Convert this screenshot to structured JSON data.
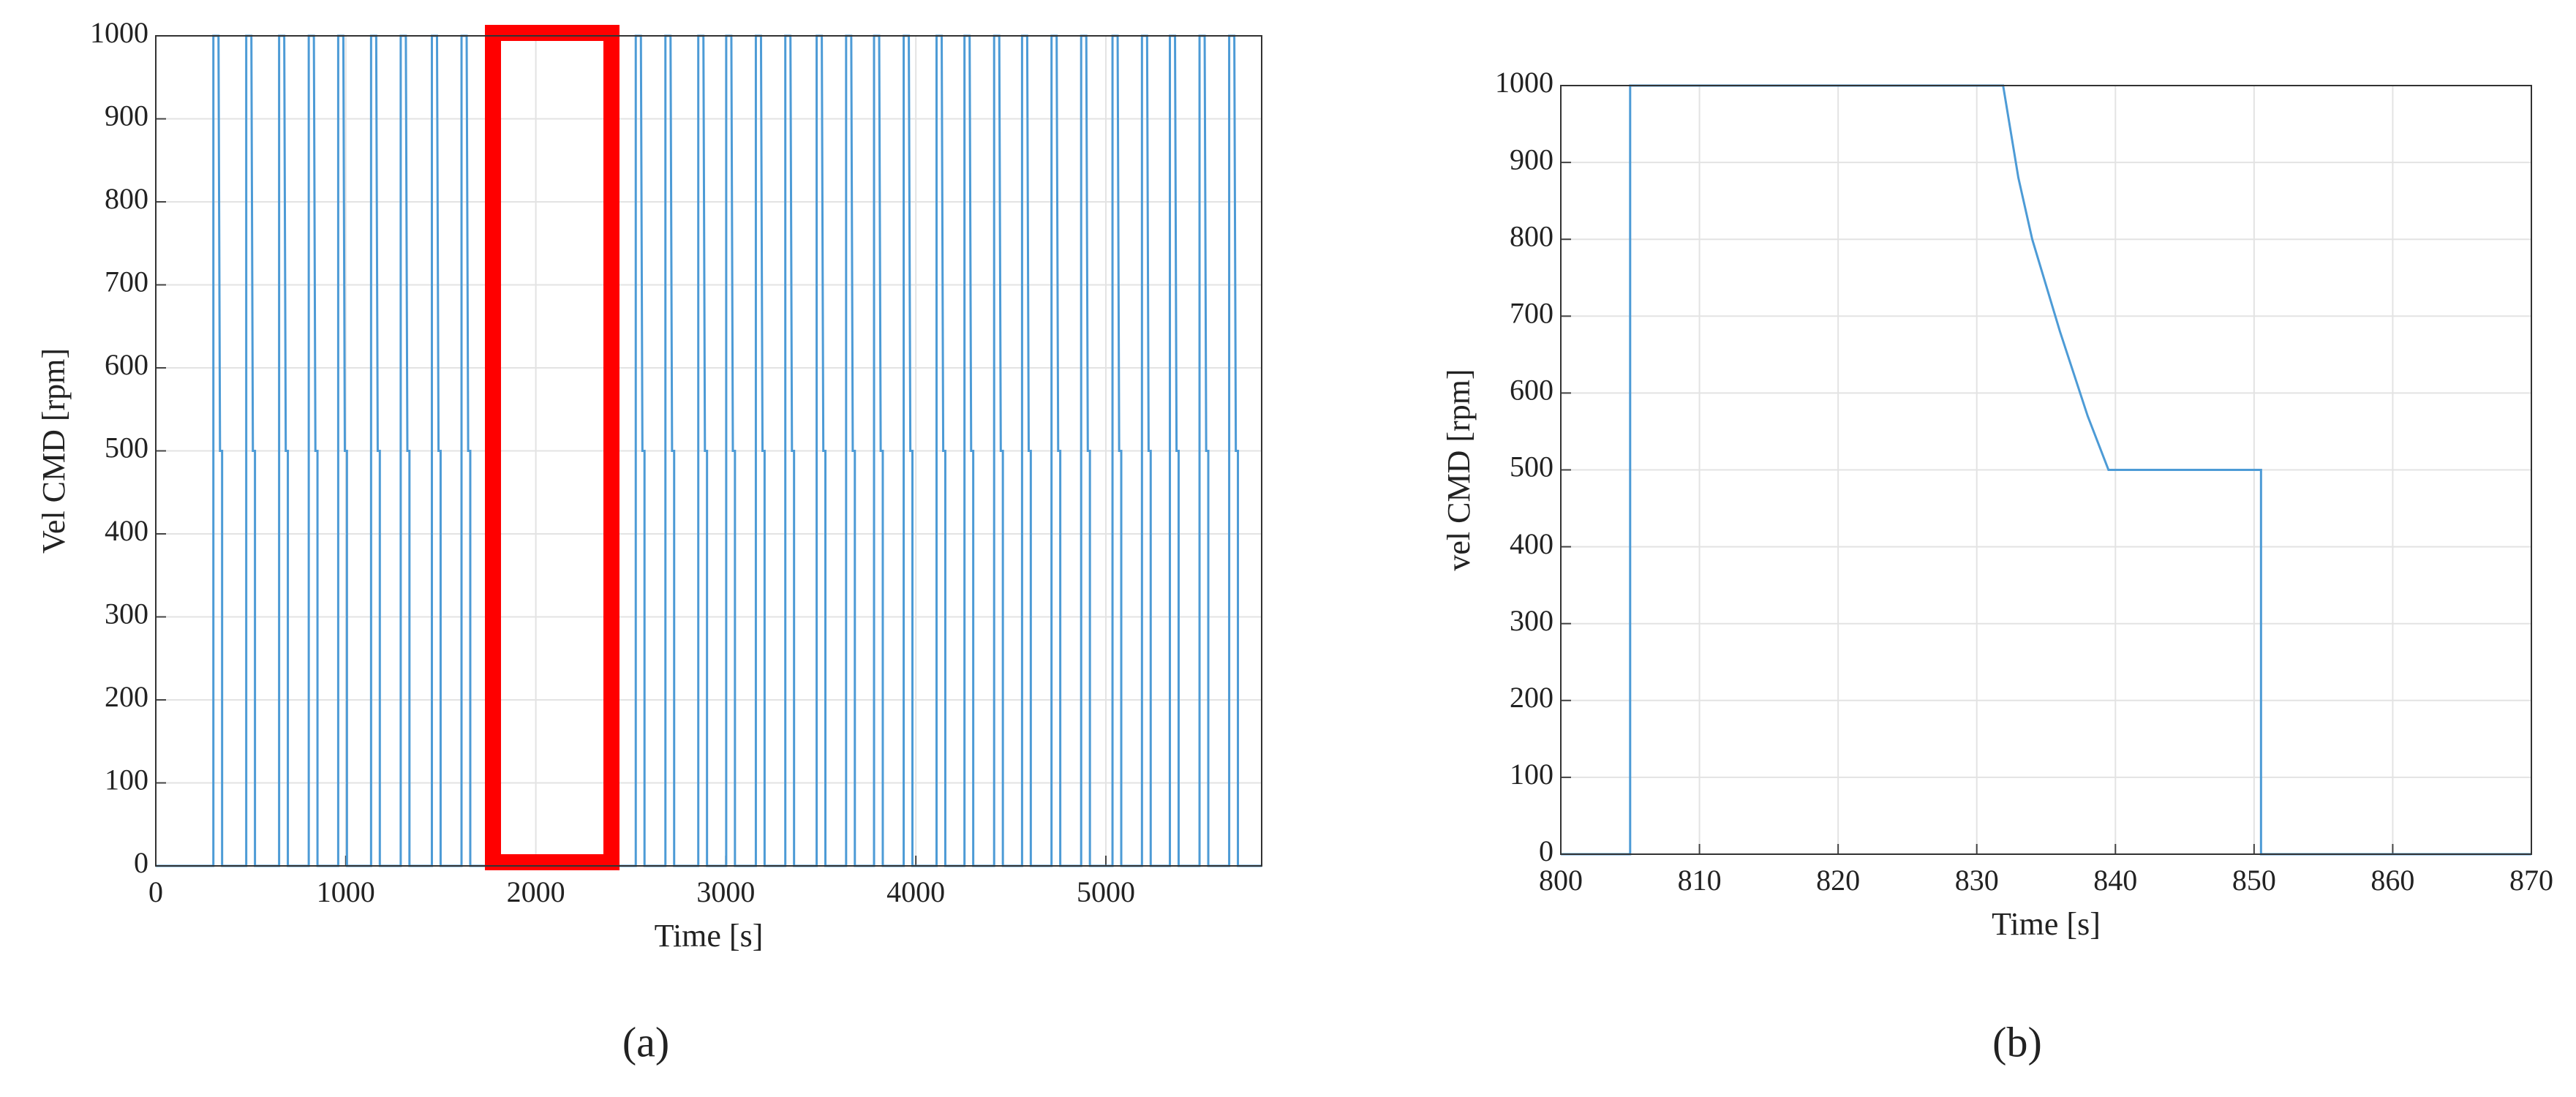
{
  "chart_data": [
    {
      "type": "line",
      "label": "(a)",
      "xlabel": "Time [s]",
      "ylabel": "Vel CMD [rpm]",
      "color": "#4d9bd6",
      "grid": true,
      "xlim": [
        0,
        5820
      ],
      "xticks": [
        0,
        1000,
        2000,
        3000,
        4000,
        5000
      ],
      "ylim": [
        0,
        1000
      ],
      "yticks": [
        0,
        100,
        200,
        300,
        400,
        500,
        600,
        700,
        800,
        900,
        1000
      ],
      "x": [
        0,
        303,
        303,
        330,
        338,
        349,
        349,
        476,
        476,
        503,
        511,
        522,
        522,
        649,
        649,
        676,
        684,
        695,
        695,
        805,
        805,
        832,
        840,
        851,
        851,
        960,
        960,
        987,
        995,
        1006,
        1006,
        1133,
        1133,
        1160,
        1168,
        1179,
        1179,
        1289,
        1289,
        1316,
        1324,
        1335,
        1335,
        1453,
        1453,
        1480,
        1488,
        1499,
        1499,
        1609,
        1609,
        1636,
        1644,
        1655,
        1655,
        2526,
        2526,
        2553,
        2561,
        2572,
        2572,
        2682,
        2682,
        2709,
        2717,
        2728,
        2728,
        2855,
        2855,
        2882,
        2890,
        2901,
        2901,
        3002,
        3002,
        3029,
        3037,
        3048,
        3048,
        3158,
        3158,
        3185,
        3193,
        3204,
        3204,
        3313,
        3313,
        3340,
        3348,
        3359,
        3359,
        3478,
        3478,
        3505,
        3513,
        3524,
        3524,
        3633,
        3633,
        3660,
        3668,
        3679,
        3679,
        3780,
        3780,
        3807,
        3815,
        3826,
        3826,
        3936,
        3936,
        3963,
        3971,
        3982,
        3982,
        4109,
        4109,
        4136,
        4144,
        4155,
        4155,
        4256,
        4256,
        4283,
        4291,
        4302,
        4302,
        4412,
        4412,
        4439,
        4447,
        4458,
        4458,
        4559,
        4559,
        4586,
        4594,
        4605,
        4605,
        4714,
        4714,
        4741,
        4749,
        4760,
        4760,
        4870,
        4870,
        4897,
        4905,
        4916,
        4916,
        5035,
        5035,
        5062,
        5070,
        5081,
        5081,
        5190,
        5190,
        5217,
        5225,
        5236,
        5236,
        5337,
        5337,
        5364,
        5372,
        5383,
        5383,
        5493,
        5493,
        5520,
        5528,
        5539,
        5539,
        5649,
        5649,
        5676,
        5684,
        5695,
        5695,
        5820
      ],
      "values": [
        0,
        0,
        1000,
        1000,
        500,
        500,
        0,
        0,
        1000,
        1000,
        500,
        500,
        0,
        0,
        1000,
        1000,
        500,
        500,
        0,
        0,
        1000,
        1000,
        500,
        500,
        0,
        0,
        1000,
        1000,
        500,
        500,
        0,
        0,
        1000,
        1000,
        500,
        500,
        0,
        0,
        1000,
        1000,
        500,
        500,
        0,
        0,
        1000,
        1000,
        500,
        500,
        0,
        0,
        1000,
        1000,
        500,
        500,
        0,
        0,
        1000,
        1000,
        500,
        500,
        0,
        0,
        1000,
        1000,
        500,
        500,
        0,
        0,
        1000,
        1000,
        500,
        500,
        0,
        0,
        1000,
        1000,
        500,
        500,
        0,
        0,
        1000,
        1000,
        500,
        500,
        0,
        0,
        1000,
        1000,
        500,
        500,
        0,
        0,
        1000,
        1000,
        500,
        500,
        0,
        0,
        1000,
        1000,
        500,
        500,
        0,
        0,
        1000,
        1000,
        500,
        500,
        0,
        0,
        1000,
        1000,
        500,
        500,
        0,
        0,
        1000,
        1000,
        500,
        500,
        0,
        0,
        1000,
        1000,
        500,
        500,
        0,
        0,
        1000,
        1000,
        500,
        500,
        0,
        0,
        1000,
        1000,
        500,
        500,
        0,
        0,
        1000,
        1000,
        500,
        500,
        0,
        0,
        1000,
        1000,
        500,
        500,
        0,
        0,
        1000,
        1000,
        500,
        500,
        0,
        0,
        1000,
        1000,
        500,
        500,
        0,
        0,
        1000,
        1000,
        500,
        500,
        0,
        0,
        1000,
        1000,
        500,
        500,
        0,
        0,
        1000,
        1000,
        500,
        500,
        0,
        0
      ]
    },
    {
      "type": "line",
      "label": "(b)",
      "xlabel": "Time [s]",
      "ylabel": "vel CMD [rpm]",
      "color": "#4d9bd6",
      "grid": true,
      "xlim": [
        800,
        870
      ],
      "xticks": [
        800,
        810,
        820,
        830,
        840,
        850,
        860,
        870
      ],
      "ylim": [
        0,
        1000
      ],
      "yticks": [
        0,
        100,
        200,
        300,
        400,
        500,
        600,
        700,
        800,
        900,
        1000
      ],
      "x": [
        800,
        805,
        805,
        831.9,
        833,
        834,
        836,
        838,
        839.5,
        850.5,
        850.5,
        870
      ],
      "values": [
        0,
        0,
        1000,
        1000,
        880,
        800,
        680,
        570,
        500,
        500,
        0,
        0
      ]
    }
  ]
}
